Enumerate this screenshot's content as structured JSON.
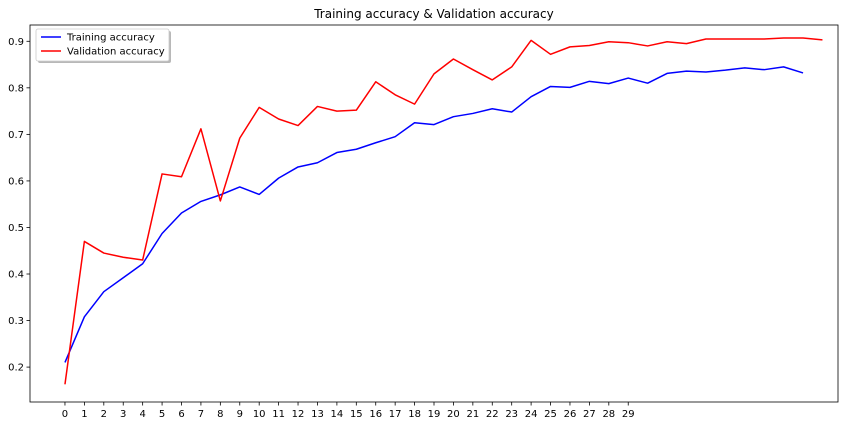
{
  "chart_data": {
    "type": "line",
    "title": "Training accuracy & Validation accuracy",
    "xlabel": "",
    "ylabel": "",
    "x_tick_labels": [
      "0",
      "1",
      "2",
      "3",
      "4",
      "5",
      "6",
      "7",
      "8",
      "9",
      "10",
      "11",
      "12",
      "13",
      "14",
      "15",
      "16",
      "17",
      "18",
      "19",
      "20",
      "21",
      "22",
      "23",
      "24",
      "25",
      "26",
      "27",
      "28",
      "29"
    ],
    "y_tick_labels": [
      "0.2",
      "0.3",
      "0.4",
      "0.5",
      "0.6",
      "0.7",
      "0.8",
      "0.9"
    ],
    "xlim": [
      -1.8,
      39.8
    ],
    "ylim": [
      0.125,
      0.935
    ],
    "grid": false,
    "legend_position": "upper-left",
    "series": [
      {
        "name": "Training accuracy",
        "color": "#0000ff",
        "x": [
          0,
          1,
          2,
          3,
          4,
          5,
          6,
          7,
          8,
          9,
          10,
          11,
          12,
          13,
          14,
          15,
          16,
          17,
          18,
          19,
          20,
          21,
          22,
          23,
          24,
          25,
          26,
          27,
          28,
          29,
          30,
          31,
          32,
          33,
          34,
          35,
          36,
          37,
          38
        ],
        "values": [
          0.21,
          0.308,
          0.362,
          0.392,
          0.422,
          0.487,
          0.531,
          0.556,
          0.57,
          0.587,
          0.571,
          0.606,
          0.63,
          0.639,
          0.661,
          0.668,
          0.682,
          0.695,
          0.725,
          0.721,
          0.738,
          0.745,
          0.755,
          0.748,
          0.781,
          0.803,
          0.801,
          0.814,
          0.809,
          0.821,
          0.81,
          0.831,
          0.836,
          0.834,
          0.838,
          0.843,
          0.839,
          0.845,
          0.832
        ]
      },
      {
        "name": "Validation accuracy",
        "color": "#ff0000",
        "x": [
          0,
          1,
          2,
          3,
          4,
          5,
          6,
          7,
          8,
          9,
          10,
          11,
          12,
          13,
          14,
          15,
          16,
          17,
          18,
          19,
          20,
          21,
          22,
          23,
          24,
          25,
          26,
          27,
          28,
          29,
          30,
          31,
          32,
          33,
          34,
          35,
          36,
          37,
          38,
          39
        ],
        "values": [
          0.163,
          0.47,
          0.445,
          0.436,
          0.43,
          0.615,
          0.609,
          0.712,
          0.557,
          0.692,
          0.758,
          0.733,
          0.719,
          0.76,
          0.75,
          0.752,
          0.813,
          0.785,
          0.765,
          0.83,
          0.862,
          0.839,
          0.817,
          0.845,
          0.902,
          0.872,
          0.888,
          0.891,
          0.899,
          0.897,
          0.89,
          0.899,
          0.895,
          0.905,
          0.905,
          0.905,
          0.905,
          0.907,
          0.907,
          0.903
        ]
      }
    ]
  }
}
